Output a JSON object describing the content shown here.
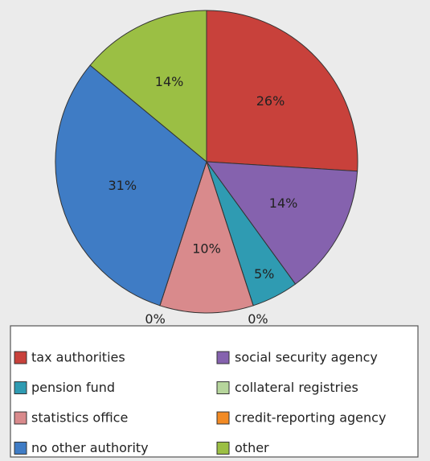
{
  "chart_data": {
    "type": "pie",
    "categories": [
      "tax authorities",
      "social security agency",
      "pension fund",
      "collateral registries",
      "statistics office",
      "credit-reporting agency",
      "no other authority",
      "other"
    ],
    "values": [
      26,
      14,
      5,
      0,
      10,
      0,
      31,
      14
    ],
    "value_labels": [
      "26%",
      "14%",
      "5%",
      "0%",
      "10%",
      "0%",
      "31%",
      "14%"
    ],
    "colors": [
      "#c8413b",
      "#8562ae",
      "#2f9bb2",
      "#b6d59c",
      "#d98a8c",
      "#f28a24",
      "#3f7cc5",
      "#9bbf44"
    ]
  }
}
